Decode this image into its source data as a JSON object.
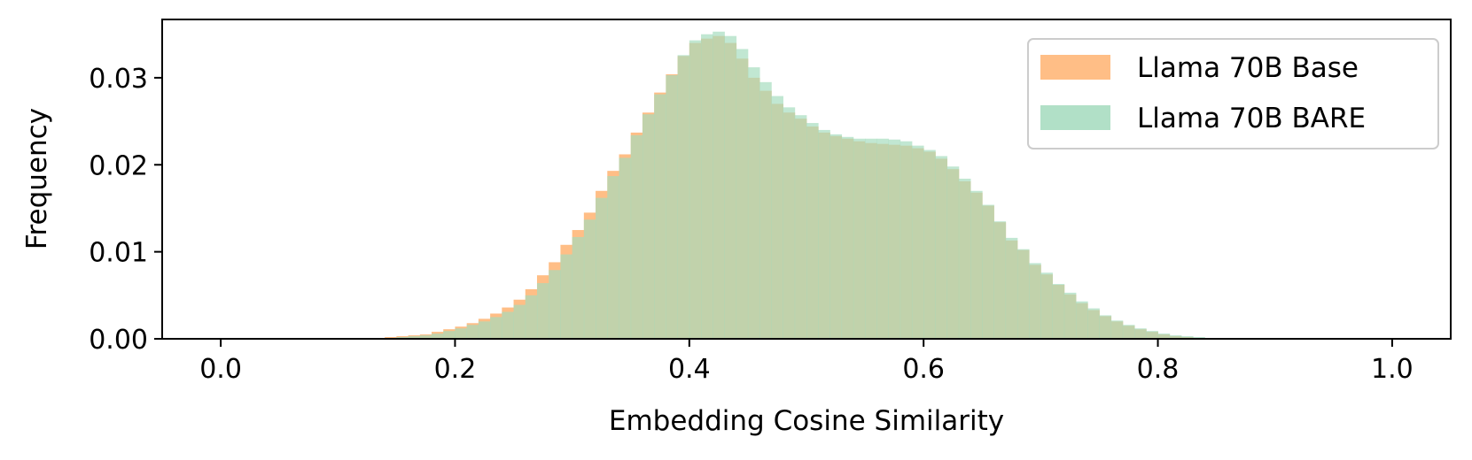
{
  "chart_data": {
    "type": "histogram",
    "title": "",
    "xlabel": "Embedding Cosine Similarity",
    "ylabel": "Frequency",
    "xlim": [
      -0.05,
      1.05
    ],
    "ylim": [
      0,
      0.0367
    ],
    "x_ticks": [
      "0.0",
      "0.2",
      "0.4",
      "0.6",
      "0.8",
      "1.0"
    ],
    "y_ticks": [
      "0.00",
      "0.01",
      "0.02",
      "0.03"
    ],
    "grid": false,
    "legend_position": "top-right",
    "bin_width": 0.01,
    "bin_start": 0.0,
    "series": [
      {
        "name": "Llama 70B Base",
        "color": "#ffbe86",
        "values": [
          0,
          0,
          0,
          0,
          0,
          0,
          0,
          0,
          0,
          0,
          0,
          0,
          0,
          0.0001,
          0.0002,
          0.0003,
          0.0004,
          0.0005,
          0.0008,
          0.0011,
          0.0014,
          0.0018,
          0.0023,
          0.0029,
          0.0036,
          0.0045,
          0.0057,
          0.0073,
          0.0088,
          0.0108,
          0.0125,
          0.0145,
          0.017,
          0.0193,
          0.0212,
          0.0237,
          0.026,
          0.0283,
          0.0304,
          0.0325,
          0.034,
          0.0345,
          0.0348,
          0.034,
          0.0322,
          0.03,
          0.0285,
          0.027,
          0.026,
          0.0253,
          0.0244,
          0.0237,
          0.0233,
          0.023,
          0.0227,
          0.0225,
          0.0224,
          0.0223,
          0.0222,
          0.0219,
          0.0215,
          0.0207,
          0.0195,
          0.0181,
          0.0168,
          0.0153,
          0.0134,
          0.0113,
          0.0102,
          0.0085,
          0.0074,
          0.0062,
          0.0051,
          0.0041,
          0.0033,
          0.0026,
          0.002,
          0.0015,
          0.0011,
          0.0008,
          0.0005,
          0.0003,
          0.0002,
          0.0001,
          0.0001,
          0,
          0,
          0,
          0,
          0,
          0,
          0,
          0,
          0,
          0,
          0,
          0,
          0,
          0,
          0
        ]
      },
      {
        "name": "Llama 70B BARE",
        "color": "#a3dbbd",
        "values": [
          0,
          0,
          0,
          0,
          0,
          0,
          0,
          0,
          0,
          0,
          0,
          0,
          0,
          0,
          0.0001,
          0.0002,
          0.0003,
          0.0004,
          0.0006,
          0.0009,
          0.0012,
          0.0016,
          0.002,
          0.0025,
          0.0031,
          0.0039,
          0.005,
          0.0064,
          0.0079,
          0.0097,
          0.0117,
          0.0137,
          0.0162,
          0.0187,
          0.0208,
          0.0234,
          0.0258,
          0.0281,
          0.0303,
          0.0326,
          0.0343,
          0.035,
          0.0353,
          0.0348,
          0.0333,
          0.0312,
          0.0295,
          0.0279,
          0.0266,
          0.0257,
          0.0248,
          0.024,
          0.0235,
          0.0232,
          0.023,
          0.023,
          0.023,
          0.0229,
          0.0227,
          0.0222,
          0.0217,
          0.021,
          0.0198,
          0.0184,
          0.017,
          0.0154,
          0.0135,
          0.0116,
          0.0103,
          0.0087,
          0.0076,
          0.0063,
          0.0053,
          0.0043,
          0.0035,
          0.0027,
          0.0021,
          0.0016,
          0.0012,
          0.0009,
          0.0006,
          0.0004,
          0.0003,
          0.0002,
          0.0001,
          0,
          0,
          0,
          0,
          0,
          0,
          0,
          0,
          0,
          0,
          0,
          0,
          0,
          0,
          0
        ]
      }
    ]
  }
}
